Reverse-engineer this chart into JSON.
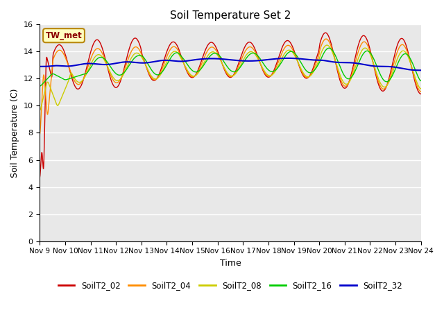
{
  "title": "Soil Temperature Set 2",
  "xlabel": "Time",
  "ylabel": "Soil Temperature (C)",
  "annotation_text": "TW_met",
  "annotation_color": "#8B0000",
  "annotation_bg": "#FFFFC0",
  "annotation_border": "#B8860B",
  "bg_color": "#E8E8E8",
  "ylim": [
    0,
    16
  ],
  "yticks": [
    0,
    2,
    4,
    6,
    8,
    10,
    12,
    14,
    16
  ],
  "series_colors": {
    "SoilT2_02": "#CC0000",
    "SoilT2_04": "#FF8C00",
    "SoilT2_08": "#CCCC00",
    "SoilT2_16": "#00CC00",
    "SoilT2_32": "#0000CC"
  },
  "legend_labels": [
    "SoilT2_02",
    "SoilT2_04",
    "SoilT2_08",
    "SoilT2_16",
    "SoilT2_32"
  ]
}
